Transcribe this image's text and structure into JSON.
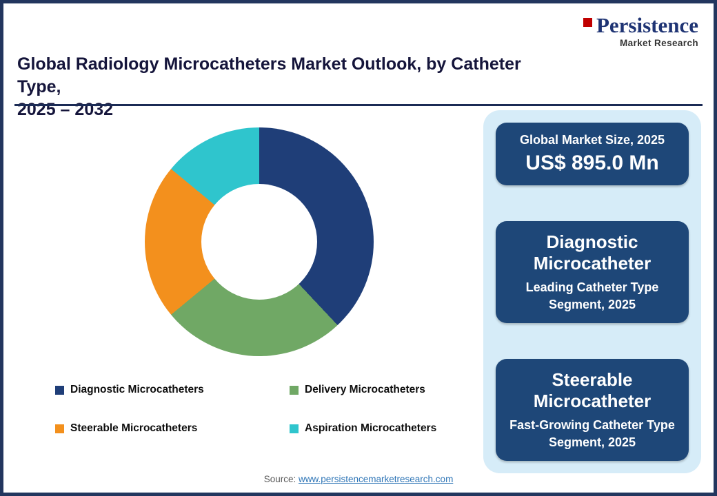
{
  "logo": {
    "brand": "Persistence",
    "subtitle": "Market Research"
  },
  "header": {
    "title_line1": "Global Radiology Microcatheters Market Outlook, by Catheter Type,",
    "title_line2": "2025 – 2032"
  },
  "chart_data": {
    "type": "pie",
    "subtype": "donut",
    "title": "Global Radiology Microcatheters Market Outlook, by Catheter Type, 2025 – 2032",
    "categories": [
      "Diagnostic Microcatheters",
      "Delivery Microcatheters",
      "Steerable Microcatheters",
      "Aspiration Microcatheters"
    ],
    "values": [
      38,
      26,
      22,
      14
    ],
    "values_note": "estimated percent share from arc angles; no data labels shown in image",
    "colors": [
      "#1F3E78",
      "#70A865",
      "#F3901D",
      "#2FC5CD"
    ],
    "start_angle_deg": 0,
    "direction": "clockwise",
    "legend_position": "bottom"
  },
  "side_panel": {
    "boxes": [
      {
        "line1": "Global Market Size, 2025",
        "line2": "US$ 895.0 Mn"
      },
      {
        "line1": "Diagnostic Microcatheter",
        "line2": "Leading Catheter Type Segment, 2025"
      },
      {
        "line1": "Steerable Microcatheter",
        "line2": "Fast-Growing Catheter Type Segment, 2025"
      }
    ]
  },
  "source": {
    "label": "Source:",
    "link": "www.persistencemarketresearch.com"
  }
}
